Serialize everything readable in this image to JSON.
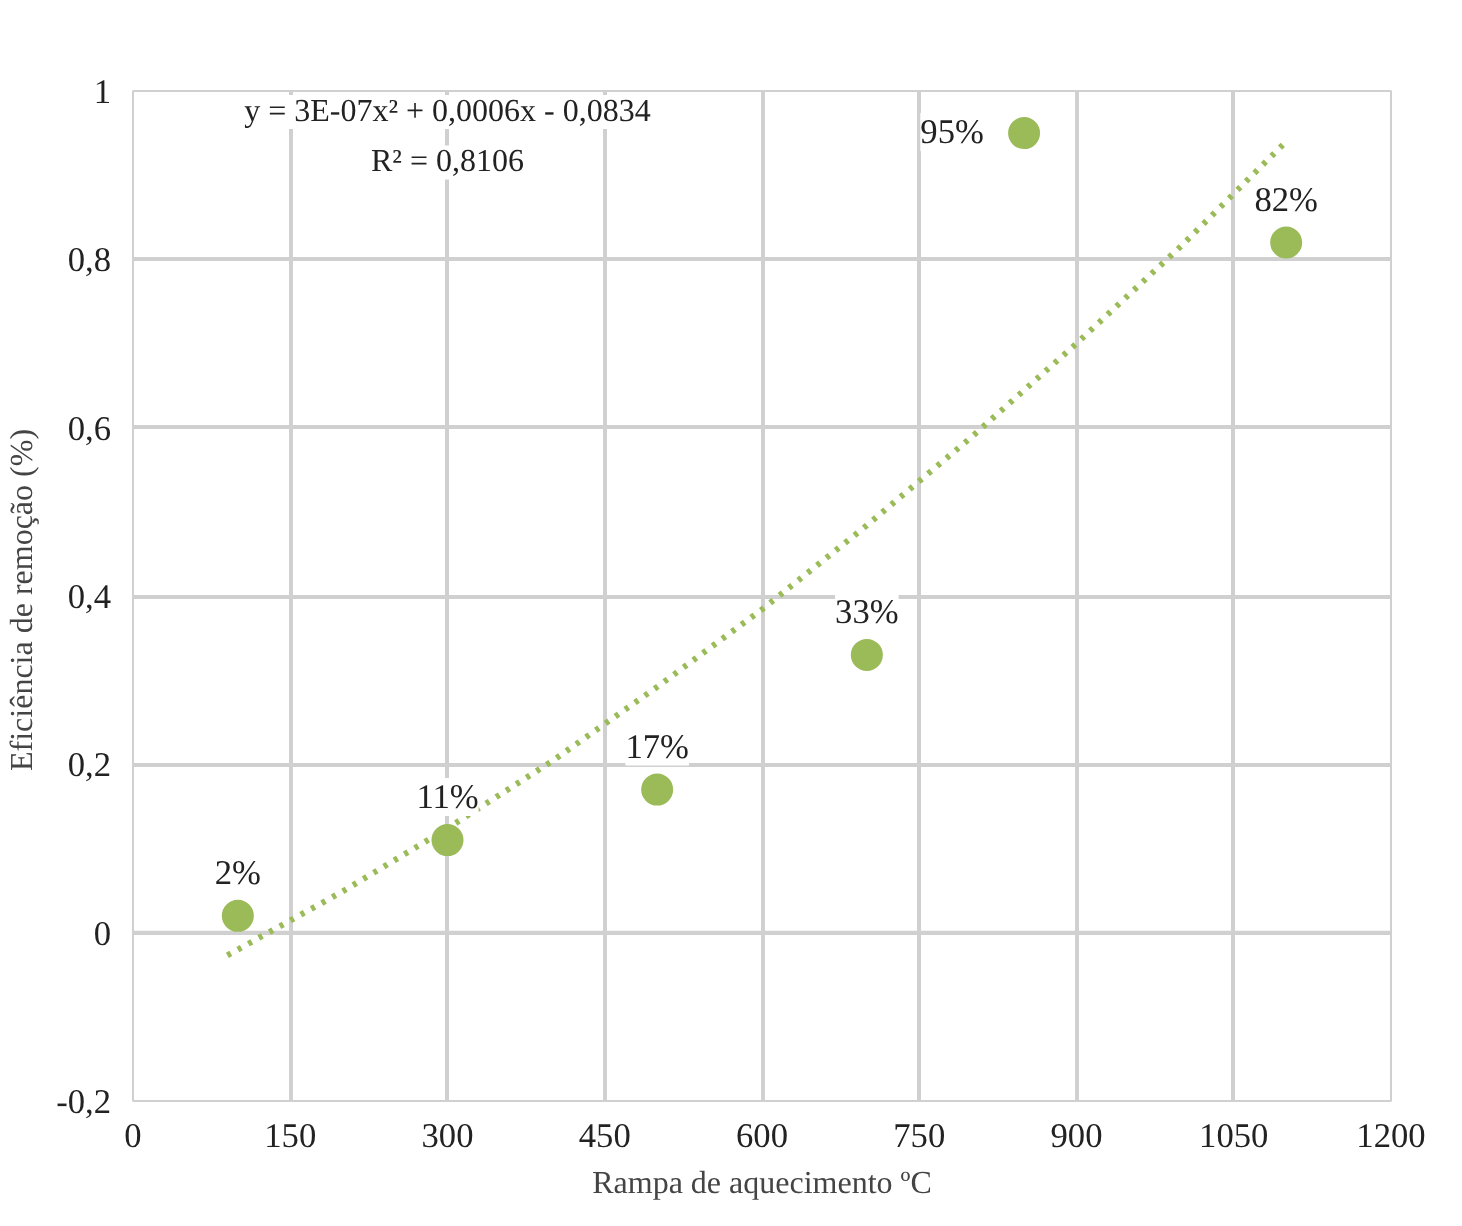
{
  "chart_data": {
    "type": "scatter",
    "xlabel": "Rampa de aquecimento ºC",
    "ylabel": "Eficiência de remoção  (%)",
    "xlim": [
      0,
      1200
    ],
    "xticks": [
      0,
      150,
      300,
      450,
      600,
      750,
      900,
      1050,
      1200
    ],
    "ylim": [
      -0.2,
      1
    ],
    "yticks": [
      {
        "value": -0.2,
        "label": "-0,2"
      },
      {
        "value": 0,
        "label": "0"
      },
      {
        "value": 0.2,
        "label": "0,2"
      },
      {
        "value": 0.4,
        "label": "0,4"
      },
      {
        "value": 0.6,
        "label": "0,6"
      },
      {
        "value": 0.8,
        "label": "0,8"
      },
      {
        "value": 1,
        "label": "1"
      }
    ],
    "grid": true,
    "marker": "circle",
    "annotations": [
      "y = 3E-07x² + 0,0006x - 0,0834",
      "R² = 0,8106"
    ],
    "series": [
      {
        "color": "#9bbb59",
        "x": [
          100,
          300,
          500,
          700,
          850,
          1100
        ],
        "values": [
          0.02,
          0.11,
          0.17,
          0.33,
          0.95,
          0.82
        ],
        "value_labels": [
          "2%",
          "11%",
          "17%",
          "33%",
          "95%",
          "82%"
        ]
      },
      {
        "type": "line",
        "color": "#9bbb59",
        "line_style": "dotted",
        "marker": "none",
        "x": [
          90,
          200,
          300,
          400,
          500,
          600,
          700,
          800,
          900,
          1000,
          1100
        ],
        "values": [
          -0.027,
          0.049,
          0.124,
          0.204,
          0.292,
          0.384,
          0.484,
          0.589,
          0.7,
          0.816,
          0.94
        ]
      }
    ]
  }
}
